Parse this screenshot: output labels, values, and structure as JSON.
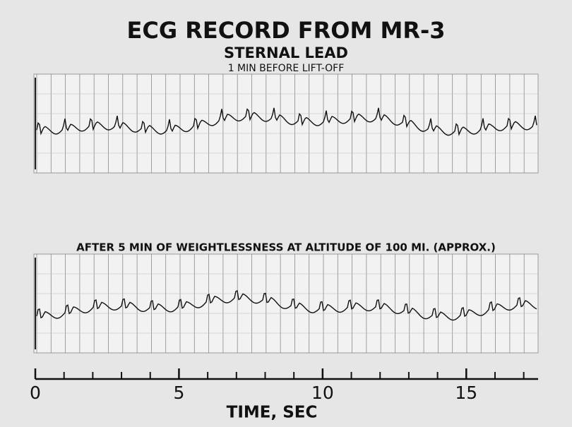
{
  "chart_data": {
    "type": "ecg",
    "title": "ECG RECORD FROM MR-3",
    "subtitle": "STERNAL LEAD",
    "panels": [
      {
        "label": "1 MIN BEFORE LIFT-OFF"
      },
      {
        "label": "AFTER 5 MIN  OF WEIGHTLESSNESS AT ALTITUDE OF 100 MI. (APPROX.)"
      }
    ],
    "xlabel": "TIME,  SEC",
    "xlim": [
      0,
      17.5
    ],
    "xticks": [
      0,
      5,
      10,
      15
    ],
    "minor_xticks": [
      0,
      1,
      2,
      3,
      4,
      5,
      6,
      7,
      8,
      9,
      10,
      11,
      12,
      13,
      14,
      15,
      16,
      17
    ]
  }
}
